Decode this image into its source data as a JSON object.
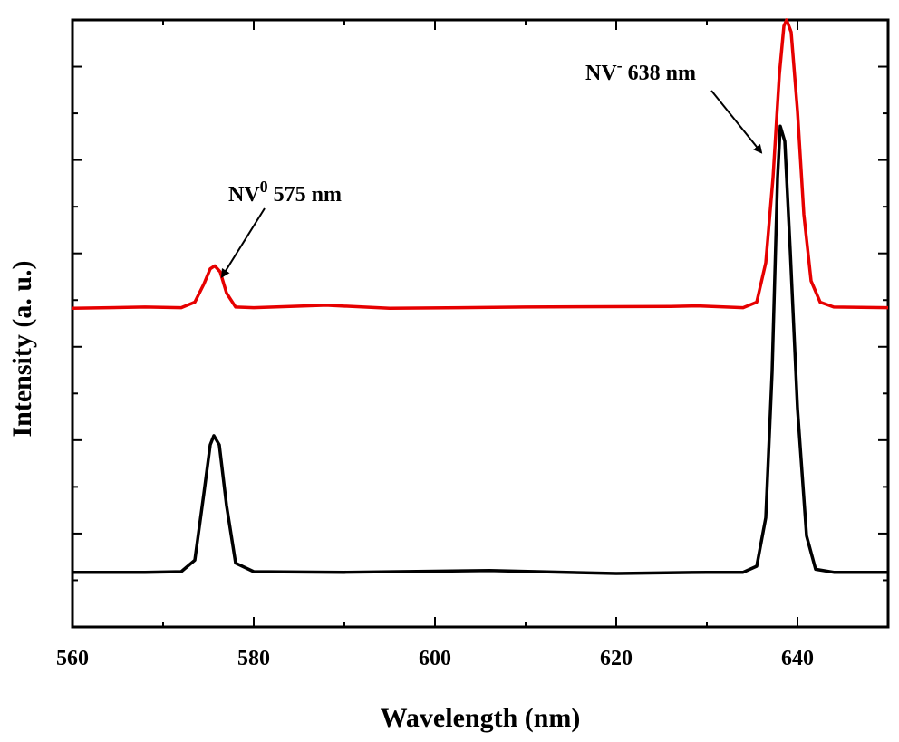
{
  "chart_data": {
    "type": "line",
    "xlabel": "Wavelength (nm)",
    "ylabel": "Intensity (a. u.)",
    "xlim": [
      560,
      650
    ],
    "ylim": [
      0,
      1
    ],
    "x_ticks": [
      560,
      580,
      600,
      620,
      640
    ],
    "y_tick_labels_shown": false,
    "grid": false,
    "series": [
      {
        "color": "#e60000",
        "x": [
          560,
          568,
          572,
          573.5,
          574.5,
          575.2,
          575.7,
          576.3,
          577,
          578,
          580,
          588,
          595,
          610,
          626,
          629,
          634,
          635.5,
          636.5,
          637.3,
          638,
          638.5,
          638.8,
          639.3,
          640,
          640.7,
          641.5,
          642.5,
          644,
          650
        ],
        "y": [
          0.525,
          0.527,
          0.526,
          0.535,
          0.565,
          0.59,
          0.595,
          0.585,
          0.55,
          0.527,
          0.526,
          0.53,
          0.525,
          0.527,
          0.528,
          0.529,
          0.526,
          0.535,
          0.6,
          0.74,
          0.91,
          0.99,
          1.0,
          0.98,
          0.85,
          0.68,
          0.57,
          0.535,
          0.527,
          0.526
        ]
      },
      {
        "color": "#000000",
        "x": [
          560,
          568,
          572,
          573.5,
          574.5,
          575.2,
          575.6,
          576.2,
          577,
          578,
          580,
          590,
          606,
          620,
          630,
          634,
          635.5,
          636.5,
          637.2,
          637.8,
          638.1,
          638.6,
          639.2,
          640,
          641,
          642,
          644,
          650
        ],
        "y": [
          0.09,
          0.09,
          0.091,
          0.11,
          0.22,
          0.3,
          0.315,
          0.3,
          0.2,
          0.105,
          0.091,
          0.09,
          0.093,
          0.088,
          0.09,
          0.09,
          0.1,
          0.18,
          0.42,
          0.74,
          0.825,
          0.8,
          0.62,
          0.36,
          0.15,
          0.095,
          0.09,
          0.09
        ]
      }
    ],
    "annotations": [
      {
        "base": "NV",
        "sup": "0",
        "rest": " 575 nm",
        "arrow_to_x": 576.5
      },
      {
        "base": "NV",
        "sup": "-",
        "rest": " 638 nm",
        "arrow_to_x": 636.0
      }
    ]
  }
}
